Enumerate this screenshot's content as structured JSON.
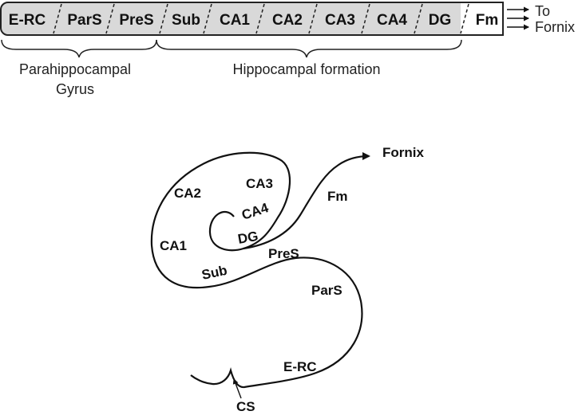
{
  "strip": {
    "segments": [
      "E-RC",
      "ParS",
      "PreS",
      "Sub",
      "CA1",
      "CA2",
      "CA3",
      "CA4",
      "DG"
    ],
    "end_label": "Fm",
    "to_label_line1": "To",
    "to_label_line2": "Fornix",
    "fill_color": "#d9d9d9"
  },
  "groups": {
    "parahippocampal_line1": "Parahippocampal",
    "parahippocampal_line2": "Gyrus",
    "hippocampal": "Hippocampal formation"
  },
  "curve": {
    "fornix": "Fornix",
    "fm": "Fm",
    "ca3": "CA3",
    "ca2": "CA2",
    "ca4": "CA4",
    "dg": "DG",
    "ca1": "CA1",
    "pres": "PreS",
    "sub": "Sub",
    "pars": "ParS",
    "erc": "E-RC",
    "cs": "CS"
  }
}
